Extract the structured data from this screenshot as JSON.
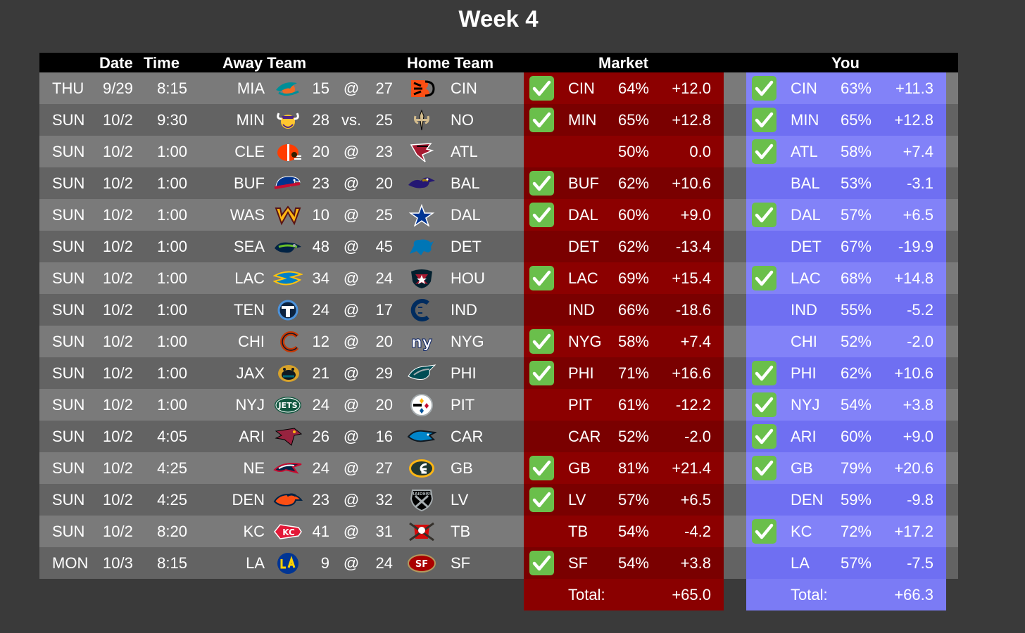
{
  "title": "Week 4",
  "headers": {
    "date": "Date",
    "time": "Time",
    "away": "Away Team",
    "home": "Home Team",
    "market": "Market",
    "you": "You"
  },
  "colors": {
    "background": "#3a3a3a",
    "header": "#000000",
    "market": "#8a0000",
    "you": "#7b7bf5",
    "check": "#6abf4b"
  },
  "games": [
    {
      "day": "THU",
      "date": "9/29",
      "time": "8:15",
      "away": "MIA",
      "away_logo": "dolphins-logo",
      "away_score": "15",
      "sep": "@",
      "home_score": "27",
      "home": "CIN",
      "home_logo": "bengals-logo",
      "market": {
        "check": true,
        "pick": "CIN",
        "pct": "64%",
        "val": "+12.0"
      },
      "you": {
        "check": true,
        "pick": "CIN",
        "pct": "63%",
        "val": "+11.3"
      }
    },
    {
      "day": "SUN",
      "date": "10/2",
      "time": "9:30",
      "away": "MIN",
      "away_logo": "vikings-logo",
      "away_score": "28",
      "sep": "vs.",
      "home_score": "25",
      "home": "NO",
      "home_logo": "saints-logo",
      "market": {
        "check": true,
        "pick": "MIN",
        "pct": "65%",
        "val": "+12.8"
      },
      "you": {
        "check": true,
        "pick": "MIN",
        "pct": "65%",
        "val": "+12.8"
      }
    },
    {
      "day": "SUN",
      "date": "10/2",
      "time": "1:00",
      "away": "CLE",
      "away_logo": "browns-logo",
      "away_score": "20",
      "sep": "@",
      "home_score": "23",
      "home": "ATL",
      "home_logo": "falcons-logo",
      "market": {
        "check": false,
        "pick": "",
        "pct": "50%",
        "val": "0.0"
      },
      "you": {
        "check": true,
        "pick": "ATL",
        "pct": "58%",
        "val": "+7.4"
      }
    },
    {
      "day": "SUN",
      "date": "10/2",
      "time": "1:00",
      "away": "BUF",
      "away_logo": "bills-logo",
      "away_score": "23",
      "sep": "@",
      "home_score": "20",
      "home": "BAL",
      "home_logo": "ravens-logo",
      "market": {
        "check": true,
        "pick": "BUF",
        "pct": "62%",
        "val": "+10.6"
      },
      "you": {
        "check": false,
        "pick": "BAL",
        "pct": "53%",
        "val": "-3.1"
      }
    },
    {
      "day": "SUN",
      "date": "10/2",
      "time": "1:00",
      "away": "WAS",
      "away_logo": "commanders-logo",
      "away_score": "10",
      "sep": "@",
      "home_score": "25",
      "home": "DAL",
      "home_logo": "cowboys-logo",
      "market": {
        "check": true,
        "pick": "DAL",
        "pct": "60%",
        "val": "+9.0"
      },
      "you": {
        "check": true,
        "pick": "DAL",
        "pct": "57%",
        "val": "+6.5"
      }
    },
    {
      "day": "SUN",
      "date": "10/2",
      "time": "1:00",
      "away": "SEA",
      "away_logo": "seahawks-logo",
      "away_score": "48",
      "sep": "@",
      "home_score": "45",
      "home": "DET",
      "home_logo": "lions-logo",
      "market": {
        "check": false,
        "pick": "DET",
        "pct": "62%",
        "val": "-13.4"
      },
      "you": {
        "check": false,
        "pick": "DET",
        "pct": "67%",
        "val": "-19.9"
      }
    },
    {
      "day": "SUN",
      "date": "10/2",
      "time": "1:00",
      "away": "LAC",
      "away_logo": "chargers-logo",
      "away_score": "34",
      "sep": "@",
      "home_score": "24",
      "home": "HOU",
      "home_logo": "texans-logo",
      "market": {
        "check": true,
        "pick": "LAC",
        "pct": "69%",
        "val": "+15.4"
      },
      "you": {
        "check": true,
        "pick": "LAC",
        "pct": "68%",
        "val": "+14.8"
      }
    },
    {
      "day": "SUN",
      "date": "10/2",
      "time": "1:00",
      "away": "TEN",
      "away_logo": "titans-logo",
      "away_score": "24",
      "sep": "@",
      "home_score": "17",
      "home": "IND",
      "home_logo": "colts-logo",
      "market": {
        "check": false,
        "pick": "IND",
        "pct": "66%",
        "val": "-18.6"
      },
      "you": {
        "check": false,
        "pick": "IND",
        "pct": "55%",
        "val": "-5.2"
      }
    },
    {
      "day": "SUN",
      "date": "10/2",
      "time": "1:00",
      "away": "CHI",
      "away_logo": "bears-logo",
      "away_score": "12",
      "sep": "@",
      "home_score": "20",
      "home": "NYG",
      "home_logo": "giants-logo",
      "market": {
        "check": true,
        "pick": "NYG",
        "pct": "58%",
        "val": "+7.4"
      },
      "you": {
        "check": false,
        "pick": "CHI",
        "pct": "52%",
        "val": "-2.0"
      }
    },
    {
      "day": "SUN",
      "date": "10/2",
      "time": "1:00",
      "away": "JAX",
      "away_logo": "jaguars-logo",
      "away_score": "21",
      "sep": "@",
      "home_score": "29",
      "home": "PHI",
      "home_logo": "eagles-logo",
      "market": {
        "check": true,
        "pick": "PHI",
        "pct": "71%",
        "val": "+16.6"
      },
      "you": {
        "check": true,
        "pick": "PHI",
        "pct": "62%",
        "val": "+10.6"
      }
    },
    {
      "day": "SUN",
      "date": "10/2",
      "time": "1:00",
      "away": "NYJ",
      "away_logo": "jets-logo",
      "away_score": "24",
      "sep": "@",
      "home_score": "20",
      "home": "PIT",
      "home_logo": "steelers-logo",
      "market": {
        "check": false,
        "pick": "PIT",
        "pct": "61%",
        "val": "-12.2"
      },
      "you": {
        "check": true,
        "pick": "NYJ",
        "pct": "54%",
        "val": "+3.8"
      }
    },
    {
      "day": "SUN",
      "date": "10/2",
      "time": "4:05",
      "away": "ARI",
      "away_logo": "cardinals-logo",
      "away_score": "26",
      "sep": "@",
      "home_score": "16",
      "home": "CAR",
      "home_logo": "panthers-logo",
      "market": {
        "check": false,
        "pick": "CAR",
        "pct": "52%",
        "val": "-2.0"
      },
      "you": {
        "check": true,
        "pick": "ARI",
        "pct": "60%",
        "val": "+9.0"
      }
    },
    {
      "day": "SUN",
      "date": "10/2",
      "time": "4:25",
      "away": "NE",
      "away_logo": "patriots-logo",
      "away_score": "24",
      "sep": "@",
      "home_score": "27",
      "home": "GB",
      "home_logo": "packers-logo",
      "market": {
        "check": true,
        "pick": "GB",
        "pct": "81%",
        "val": "+21.4"
      },
      "you": {
        "check": true,
        "pick": "GB",
        "pct": "79%",
        "val": "+20.6"
      }
    },
    {
      "day": "SUN",
      "date": "10/2",
      "time": "4:25",
      "away": "DEN",
      "away_logo": "broncos-logo",
      "away_score": "23",
      "sep": "@",
      "home_score": "32",
      "home": "LV",
      "home_logo": "raiders-logo",
      "market": {
        "check": true,
        "pick": "LV",
        "pct": "57%",
        "val": "+6.5"
      },
      "you": {
        "check": false,
        "pick": "DEN",
        "pct": "59%",
        "val": "-9.8"
      }
    },
    {
      "day": "SUN",
      "date": "10/2",
      "time": "8:20",
      "away": "KC",
      "away_logo": "chiefs-logo",
      "away_score": "41",
      "sep": "@",
      "home_score": "31",
      "home": "TB",
      "home_logo": "buccaneers-logo",
      "market": {
        "check": false,
        "pick": "TB",
        "pct": "54%",
        "val": "-4.2"
      },
      "you": {
        "check": true,
        "pick": "KC",
        "pct": "72%",
        "val": "+17.2"
      }
    },
    {
      "day": "MON",
      "date": "10/3",
      "time": "8:15",
      "away": "LA",
      "away_logo": "rams-logo",
      "away_score": "9",
      "sep": "@",
      "home_score": "24",
      "home": "SF",
      "home_logo": "49ers-logo",
      "market": {
        "check": true,
        "pick": "SF",
        "pct": "54%",
        "val": "+3.8"
      },
      "you": {
        "check": false,
        "pick": "LA",
        "pct": "57%",
        "val": "-7.5"
      }
    }
  ],
  "market_total": {
    "label": "Total:",
    "value": "+65.0"
  },
  "you_total": {
    "label": "Total:",
    "value": "+66.3"
  }
}
